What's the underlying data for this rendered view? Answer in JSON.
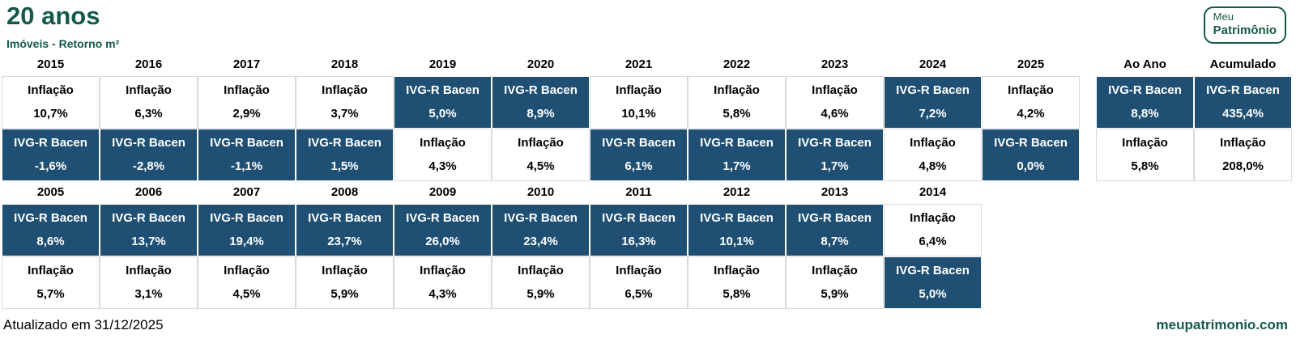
{
  "header": {
    "title": "20 anos",
    "subtitle": "Imóveis - Retorno m²"
  },
  "logo": {
    "line1": "Meu",
    "line2": "Patrimônio"
  },
  "colors": {
    "accent_green": "#15594A",
    "highlight_blue": "#1F5074",
    "cell_border_gray": "#D9D9D9"
  },
  "table": {
    "recent": {
      "columns": [
        {
          "year": "2015",
          "top": {
            "label": "Inflação",
            "value": "10,7%",
            "variant": "white"
          },
          "bottom": {
            "label": "IVG-R Bacen",
            "value": "-1,6%",
            "variant": "blue"
          }
        },
        {
          "year": "2016",
          "top": {
            "label": "Inflação",
            "value": "6,3%",
            "variant": "white"
          },
          "bottom": {
            "label": "IVG-R Bacen",
            "value": "-2,8%",
            "variant": "blue"
          }
        },
        {
          "year": "2017",
          "top": {
            "label": "Inflação",
            "value": "2,9%",
            "variant": "white"
          },
          "bottom": {
            "label": "IVG-R Bacen",
            "value": "-1,1%",
            "variant": "blue"
          }
        },
        {
          "year": "2018",
          "top": {
            "label": "Inflação",
            "value": "3,7%",
            "variant": "white"
          },
          "bottom": {
            "label": "IVG-R Bacen",
            "value": "1,5%",
            "variant": "blue"
          }
        },
        {
          "year": "2019",
          "top": {
            "label": "IVG-R Bacen",
            "value": "5,0%",
            "variant": "blue"
          },
          "bottom": {
            "label": "Inflação",
            "value": "4,3%",
            "variant": "white"
          }
        },
        {
          "year": "2020",
          "top": {
            "label": "IVG-R Bacen",
            "value": "8,9%",
            "variant": "blue"
          },
          "bottom": {
            "label": "Inflação",
            "value": "4,5%",
            "variant": "white"
          }
        },
        {
          "year": "2021",
          "top": {
            "label": "Inflação",
            "value": "10,1%",
            "variant": "white"
          },
          "bottom": {
            "label": "IVG-R Bacen",
            "value": "6,1%",
            "variant": "blue"
          }
        },
        {
          "year": "2022",
          "top": {
            "label": "Inflação",
            "value": "5,8%",
            "variant": "white"
          },
          "bottom": {
            "label": "IVG-R Bacen",
            "value": "1,7%",
            "variant": "blue"
          }
        },
        {
          "year": "2023",
          "top": {
            "label": "Inflação",
            "value": "4,6%",
            "variant": "white"
          },
          "bottom": {
            "label": "IVG-R Bacen",
            "value": "1,7%",
            "variant": "blue"
          }
        },
        {
          "year": "2024",
          "top": {
            "label": "IVG-R Bacen",
            "value": "7,2%",
            "variant": "blue"
          },
          "bottom": {
            "label": "Inflação",
            "value": "4,8%",
            "variant": "white"
          }
        },
        {
          "year": "2025",
          "top": {
            "label": "Inflação",
            "value": "4,2%",
            "variant": "white"
          },
          "bottom": {
            "label": "IVG-R Bacen",
            "value": "0,0%",
            "variant": "blue"
          }
        }
      ],
      "summary": [
        {
          "year": "Ao Ano",
          "top": {
            "label": "IVG-R Bacen",
            "value": "8,8%",
            "variant": "blue"
          },
          "bottom": {
            "label": "Inflação",
            "value": "5,8%",
            "variant": "white"
          }
        },
        {
          "year": "Acumulado",
          "top": {
            "label": "IVG-R Bacen",
            "value": "435,4%",
            "variant": "blue"
          },
          "bottom": {
            "label": "Inflação",
            "value": "208,0%",
            "variant": "white"
          }
        }
      ]
    },
    "early": {
      "columns": [
        {
          "year": "2005",
          "top": {
            "label": "IVG-R Bacen",
            "value": "8,6%",
            "variant": "blue"
          },
          "bottom": {
            "label": "Inflação",
            "value": "5,7%",
            "variant": "white"
          }
        },
        {
          "year": "2006",
          "top": {
            "label": "IVG-R Bacen",
            "value": "13,7%",
            "variant": "blue"
          },
          "bottom": {
            "label": "Inflação",
            "value": "3,1%",
            "variant": "white"
          }
        },
        {
          "year": "2007",
          "top": {
            "label": "IVG-R Bacen",
            "value": "19,4%",
            "variant": "blue"
          },
          "bottom": {
            "label": "Inflação",
            "value": "4,5%",
            "variant": "white"
          }
        },
        {
          "year": "2008",
          "top": {
            "label": "IVG-R Bacen",
            "value": "23,7%",
            "variant": "blue"
          },
          "bottom": {
            "label": "Inflação",
            "value": "5,9%",
            "variant": "white"
          }
        },
        {
          "year": "2009",
          "top": {
            "label": "IVG-R Bacen",
            "value": "26,0%",
            "variant": "blue"
          },
          "bottom": {
            "label": "Inflação",
            "value": "4,3%",
            "variant": "white"
          }
        },
        {
          "year": "2010",
          "top": {
            "label": "IVG-R Bacen",
            "value": "23,4%",
            "variant": "blue"
          },
          "bottom": {
            "label": "Inflação",
            "value": "5,9%",
            "variant": "white"
          }
        },
        {
          "year": "2011",
          "top": {
            "label": "IVG-R Bacen",
            "value": "16,3%",
            "variant": "blue"
          },
          "bottom": {
            "label": "Inflação",
            "value": "6,5%",
            "variant": "white"
          }
        },
        {
          "year": "2012",
          "top": {
            "label": "IVG-R Bacen",
            "value": "10,1%",
            "variant": "blue"
          },
          "bottom": {
            "label": "Inflação",
            "value": "5,8%",
            "variant": "white"
          }
        },
        {
          "year": "2013",
          "top": {
            "label": "IVG-R Bacen",
            "value": "8,7%",
            "variant": "blue"
          },
          "bottom": {
            "label": "Inflação",
            "value": "5,9%",
            "variant": "white"
          }
        },
        {
          "year": "2014",
          "top": {
            "label": "Inflação",
            "value": "6,4%",
            "variant": "white"
          },
          "bottom": {
            "label": "IVG-R Bacen",
            "value": "5,0%",
            "variant": "blue"
          }
        }
      ]
    }
  },
  "footer": {
    "updated": "Atualizado em 31/12/2025",
    "site": "meupatrimonio.com"
  },
  "chart_data": {
    "type": "table",
    "title": "20 anos",
    "subtitle": "Imóveis - Retorno m²",
    "categories": [
      "2005",
      "2006",
      "2007",
      "2008",
      "2009",
      "2010",
      "2011",
      "2012",
      "2013",
      "2014",
      "2015",
      "2016",
      "2017",
      "2018",
      "2019",
      "2020",
      "2021",
      "2022",
      "2023",
      "2024",
      "2025",
      "Ao Ano",
      "Acumulado"
    ],
    "series": [
      {
        "name": "IVG-R Bacen",
        "values": [
          8.6,
          13.7,
          19.4,
          23.7,
          26.0,
          23.4,
          16.3,
          10.1,
          8.7,
          5.0,
          -1.6,
          -2.8,
          -1.1,
          1.5,
          5.0,
          8.9,
          6.1,
          1.7,
          1.7,
          7.2,
          0.0,
          8.8,
          435.4
        ]
      },
      {
        "name": "Inflação",
        "values": [
          5.7,
          3.1,
          4.5,
          5.9,
          4.3,
          5.9,
          6.5,
          5.8,
          5.9,
          6.4,
          10.7,
          6.3,
          2.9,
          3.7,
          4.3,
          4.5,
          10.1,
          5.8,
          4.6,
          4.8,
          4.2,
          5.8,
          208.0
        ]
      }
    ],
    "layout_note": "Per year, the winning series is shown on top; IVG-R Bacen cells highlighted dark blue, Inflação cells white",
    "values_format": "percent, comma decimal separator"
  }
}
